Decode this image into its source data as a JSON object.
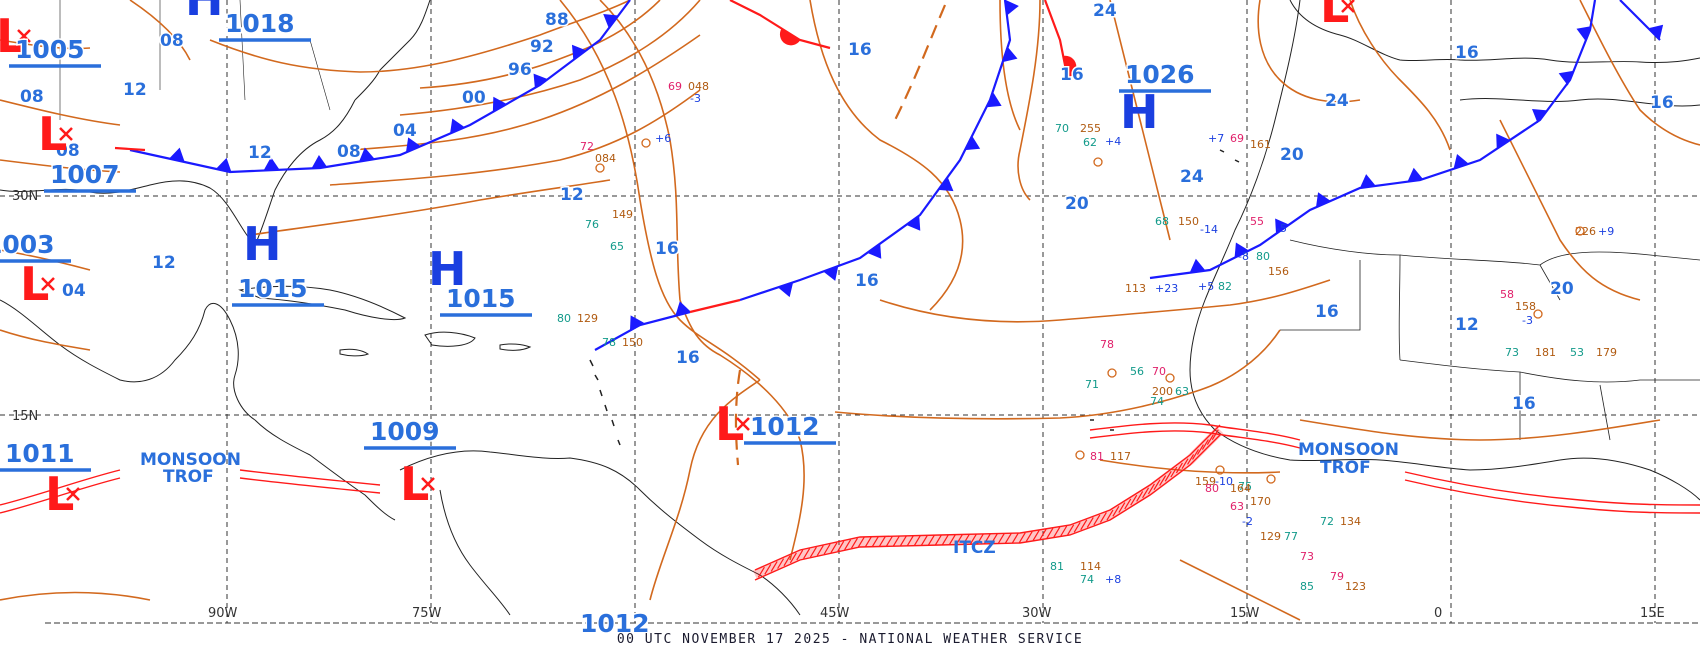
{
  "footer": {
    "text": "00 UTC NOVEMBER 17 2025 - NATIONAL WEATHER SERVICE"
  },
  "colors": {
    "isobar": "#d2691e",
    "cold_front": "#1a1aff",
    "warm_front": "#ff1a1a",
    "pressure_label": "#2a6fdb",
    "high": "#1a3fe0",
    "low": "#ff1a1a",
    "grid": "#333333",
    "coast": "#222222",
    "station_temp": "#e0206a",
    "station_dew": "#129a8a"
  },
  "grid_labels": {
    "lon": [
      "90W",
      "75W",
      "45W",
      "30W",
      "15W",
      "0",
      "15E"
    ],
    "lat": [
      "30N",
      "15N"
    ]
  },
  "systems": [
    {
      "type": "H",
      "pressure": "1018"
    },
    {
      "type": "L",
      "pressure": "1005"
    },
    {
      "type": "L",
      "pressure": "1007"
    },
    {
      "type": "L",
      "pressure": "1003"
    },
    {
      "type": "H",
      "pressure": "1015"
    },
    {
      "type": "H",
      "pressure": "1015"
    },
    {
      "type": "L",
      "pressure": "1011"
    },
    {
      "type": "L",
      "pressure": "1009"
    },
    {
      "type": "L",
      "pressure": "1012"
    },
    {
      "type": "H",
      "pressure": "1026"
    },
    {
      "type": "L",
      "pressure": "1012"
    }
  ],
  "labels": {
    "monsoon_west": [
      "MONSOON",
      "TROF"
    ],
    "monsoon_east": [
      "MONSOON",
      "TROF"
    ],
    "itcz": "ITCZ"
  },
  "isobar_values": [
    "88",
    "92",
    "96",
    "00",
    "04",
    "08",
    "08",
    "08",
    "12",
    "12",
    "12",
    "12",
    "16",
    "16",
    "16",
    "16",
    "16",
    "20",
    "20",
    "20",
    "24",
    "24",
    "24",
    "16",
    "12",
    "16",
    "16",
    "16",
    "08",
    "04"
  ],
  "station_samples": [
    "72",
    "084",
    "+6",
    "76",
    "149",
    "65",
    "69",
    "048",
    "-3",
    "80",
    "129",
    "78",
    "150",
    "68",
    "150",
    "-14",
    "55",
    "-5",
    "226",
    "+9",
    "58",
    "158",
    "-3",
    "73",
    "181",
    "53",
    "179",
    "70",
    "255",
    "62",
    "+4",
    "81",
    "114",
    "74",
    "+8",
    "159",
    "-10",
    "75",
    "129",
    "77",
    "73",
    "85",
    "79",
    "123",
    "63",
    "170",
    "-2",
    "72",
    "134",
    "+7",
    "69",
    "161",
    "-8",
    "80",
    "156",
    "56",
    "70",
    "74",
    "200",
    "63",
    "+5",
    "82",
    "113",
    "+23",
    "80",
    "164",
    "81",
    "117",
    "78",
    "71"
  ]
}
